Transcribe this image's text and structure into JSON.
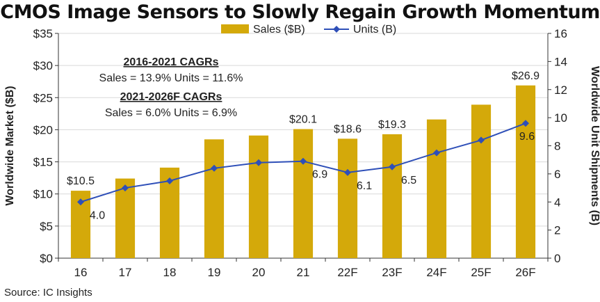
{
  "chart_data": {
    "type": "bar",
    "title": "CMOS Image Sensors to Slowly Regain Growth Momentum",
    "categories": [
      "16",
      "17",
      "18",
      "19",
      "20",
      "21",
      "22F",
      "23F",
      "24F",
      "25F",
      "26F"
    ],
    "series": [
      {
        "name": "Sales ($B)",
        "type": "bar",
        "axis": "left",
        "color": "#D4A90A",
        "values": [
          10.5,
          12.4,
          14.1,
          18.5,
          19.1,
          20.1,
          18.6,
          19.3,
          21.6,
          23.9,
          26.9
        ],
        "labels": [
          "$10.5",
          "",
          "",
          "",
          "",
          "$20.1",
          "$18.6",
          "$19.3",
          "",
          "",
          "$26.9"
        ]
      },
      {
        "name": "Units (B)",
        "type": "line",
        "axis": "right",
        "color": "#2E4FB8",
        "values": [
          4.0,
          5.0,
          5.5,
          6.4,
          6.8,
          6.9,
          6.1,
          6.5,
          7.5,
          8.4,
          9.6
        ],
        "labels": [
          "4.0",
          "",
          "",
          "",
          "",
          "6.9",
          "6.1",
          "6.5",
          "",
          "",
          "9.6"
        ]
      }
    ],
    "yleft": {
      "label": "Worldwide Market ($B)",
      "range": [
        0,
        35
      ],
      "ticks": [
        0,
        5,
        10,
        15,
        20,
        25,
        30,
        35
      ],
      "tick_labels": [
        "$0",
        "$5",
        "$10",
        "$15",
        "$20",
        "$25",
        "$30",
        "$35"
      ]
    },
    "yright": {
      "label": "Worldwide Unit Shipments (B)",
      "range": [
        0,
        16
      ],
      "ticks": [
        0,
        2,
        4,
        6,
        8,
        10,
        12,
        14,
        16
      ],
      "tick_labels": [
        "0",
        "2",
        "4",
        "6",
        "8",
        "10",
        "12",
        "14",
        "16"
      ]
    },
    "grid": true,
    "legend_position": "top-center",
    "annotations": [
      {
        "heading": "2016-2021 CAGRs",
        "text": "Sales = 13.9%  Units = 11.6%"
      },
      {
        "heading": "2021-2026F CAGRs",
        "text": "Sales = 6.0%  Units = 6.9%"
      }
    ]
  },
  "source": "Source: IC Insights"
}
